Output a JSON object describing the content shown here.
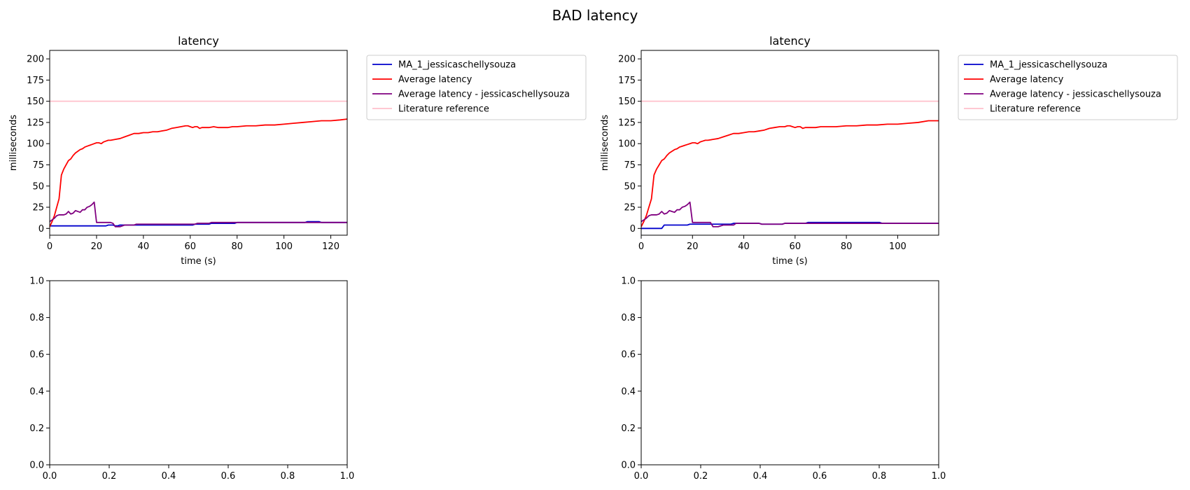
{
  "suptitle": "BAD latency",
  "legend_placement": "outside-right-top",
  "chart_data": [
    {
      "type": "line",
      "title": "latency",
      "xlabel": "time (s)",
      "ylabel": "milliseconds",
      "xlim": [
        0,
        127
      ],
      "ylim": [
        -8,
        210
      ],
      "xticks": [
        0,
        20,
        40,
        60,
        80,
        100,
        120
      ],
      "yticks": [
        0,
        25,
        50,
        75,
        100,
        125,
        150,
        175,
        200
      ],
      "grid": false,
      "series": [
        {
          "name": "MA_1_jessicaschellysouza",
          "color": "#0000cc",
          "x": [
            0,
            24,
            25,
            26,
            27,
            28,
            29,
            30,
            31,
            36,
            37,
            61,
            62,
            68,
            69,
            79,
            80,
            109,
            110,
            115,
            116,
            127
          ],
          "y": [
            3,
            3,
            4,
            4,
            4,
            3,
            3,
            4,
            4,
            4,
            4,
            4,
            5,
            5,
            6,
            6,
            7,
            7,
            8,
            8,
            7,
            7
          ]
        },
        {
          "name": "Average latency",
          "color": "#ff0000",
          "x": [
            0,
            1,
            2,
            3,
            4,
            5,
            6,
            7,
            8,
            9,
            10,
            11,
            12,
            13,
            14,
            15,
            16,
            17,
            18,
            19,
            20,
            21,
            22,
            23,
            24,
            25,
            26,
            28,
            30,
            32,
            34,
            36,
            38,
            40,
            42,
            44,
            46,
            48,
            50,
            52,
            54,
            56,
            58,
            59,
            60,
            61,
            62,
            63,
            64,
            65,
            66,
            68,
            70,
            72,
            74,
            76,
            78,
            80,
            84,
            88,
            92,
            96,
            100,
            104,
            108,
            112,
            116,
            120,
            124,
            127
          ],
          "y": [
            2,
            8,
            15,
            25,
            35,
            63,
            70,
            75,
            80,
            82,
            86,
            89,
            91,
            93,
            94,
            96,
            97,
            98,
            99,
            100,
            101,
            101,
            100,
            102,
            103,
            104,
            104,
            105,
            106,
            108,
            110,
            112,
            112,
            113,
            113,
            114,
            114,
            115,
            116,
            118,
            119,
            120,
            121,
            121,
            120,
            119,
            120,
            120,
            118,
            119,
            119,
            119,
            120,
            119,
            119,
            119,
            120,
            120,
            121,
            121,
            122,
            122,
            123,
            124,
            125,
            126,
            127,
            127,
            128,
            129
          ]
        },
        {
          "name": "Average latency - jessicaschellysouza",
          "color": "#800080",
          "x": [
            0,
            1,
            2,
            3,
            4,
            5,
            6,
            7,
            8,
            9,
            10,
            11,
            12,
            13,
            14,
            15,
            16,
            17,
            18,
            19,
            20,
            21,
            22,
            26,
            27,
            28,
            30,
            32,
            36,
            37,
            50,
            51,
            62,
            63,
            68,
            69,
            80,
            81,
            100,
            101,
            127
          ],
          "y": [
            8,
            10,
            12,
            15,
            16,
            16,
            16,
            17,
            20,
            17,
            18,
            21,
            20,
            19,
            22,
            22,
            25,
            26,
            28,
            31,
            7,
            7,
            7,
            7,
            6,
            2,
            2,
            4,
            4,
            5,
            5,
            5,
            5,
            6,
            6,
            7,
            7,
            7,
            7,
            7,
            7
          ]
        },
        {
          "name": "Literature reference",
          "color": "#ffc0cb",
          "x": [
            0,
            127
          ],
          "y": [
            150,
            150
          ]
        }
      ]
    },
    {
      "type": "line",
      "title": "latency",
      "xlabel": "time (s)",
      "ylabel": "milliseconds",
      "xlim": [
        0,
        116
      ],
      "ylim": [
        -8,
        210
      ],
      "xticks": [
        0,
        20,
        40,
        60,
        80,
        100
      ],
      "yticks": [
        0,
        25,
        50,
        75,
        100,
        125,
        150,
        175,
        200
      ],
      "grid": false,
      "series": [
        {
          "name": "MA_1_jessicaschellysouza",
          "color": "#0000cc",
          "x": [
            0,
            8,
            9,
            18,
            19,
            35,
            36,
            46,
            47,
            55,
            56,
            64,
            65,
            93,
            94,
            116
          ],
          "y": [
            0,
            0,
            4,
            4,
            5,
            5,
            6,
            6,
            5,
            5,
            6,
            6,
            7,
            7,
            6,
            6
          ]
        },
        {
          "name": "Average latency",
          "color": "#ff0000",
          "x": [
            0,
            1,
            2,
            3,
            4,
            5,
            6,
            7,
            8,
            9,
            10,
            11,
            12,
            13,
            14,
            15,
            16,
            17,
            18,
            19,
            20,
            21,
            22,
            23,
            24,
            25,
            26,
            28,
            30,
            32,
            34,
            36,
            38,
            40,
            42,
            44,
            46,
            48,
            50,
            52,
            54,
            56,
            57,
            58,
            59,
            60,
            61,
            62,
            63,
            64,
            66,
            68,
            70,
            72,
            76,
            80,
            84,
            88,
            92,
            96,
            100,
            104,
            108,
            112,
            116
          ],
          "y": [
            2,
            8,
            15,
            25,
            35,
            63,
            70,
            75,
            80,
            82,
            86,
            89,
            91,
            93,
            94,
            96,
            97,
            98,
            99,
            100,
            101,
            101,
            100,
            102,
            103,
            104,
            104,
            105,
            106,
            108,
            110,
            112,
            112,
            113,
            114,
            114,
            115,
            116,
            118,
            119,
            120,
            120,
            121,
            121,
            120,
            119,
            120,
            120,
            118,
            119,
            119,
            119,
            120,
            120,
            120,
            121,
            121,
            122,
            122,
            123,
            123,
            124,
            125,
            127,
            127
          ]
        },
        {
          "name": "Average latency - jessicaschellysouza",
          "color": "#800080",
          "x": [
            0,
            1,
            2,
            3,
            4,
            5,
            6,
            7,
            8,
            9,
            10,
            11,
            12,
            13,
            14,
            15,
            16,
            17,
            18,
            19,
            20,
            21,
            22,
            27,
            28,
            30,
            32,
            36,
            37,
            46,
            47,
            55,
            56,
            68,
            69,
            93,
            94,
            116
          ],
          "y": [
            8,
            10,
            12,
            15,
            16,
            16,
            16,
            17,
            20,
            17,
            18,
            21,
            20,
            19,
            22,
            22,
            25,
            26,
            28,
            31,
            7,
            7,
            7,
            7,
            2,
            2,
            4,
            4,
            6,
            6,
            5,
            5,
            6,
            6,
            6,
            6,
            6,
            6
          ]
        },
        {
          "name": "Literature reference",
          "color": "#ffc0cb",
          "x": [
            0,
            116
          ],
          "y": [
            150,
            150
          ]
        }
      ]
    },
    {
      "type": "line",
      "title": "",
      "xlabel": "",
      "ylabel": "",
      "xlim": [
        0,
        1
      ],
      "ylim": [
        0,
        1
      ],
      "xticks": [
        0.0,
        0.2,
        0.4,
        0.6,
        0.8,
        1.0
      ],
      "yticks": [
        0.0,
        0.2,
        0.4,
        0.6,
        0.8,
        1.0
      ],
      "grid": false,
      "series": []
    },
    {
      "type": "line",
      "title": "",
      "xlabel": "",
      "ylabel": "",
      "xlim": [
        0,
        1
      ],
      "ylim": [
        0,
        1
      ],
      "xticks": [
        0.0,
        0.2,
        0.4,
        0.6,
        0.8,
        1.0
      ],
      "yticks": [
        0.0,
        0.2,
        0.4,
        0.6,
        0.8,
        1.0
      ],
      "grid": false,
      "series": []
    }
  ]
}
